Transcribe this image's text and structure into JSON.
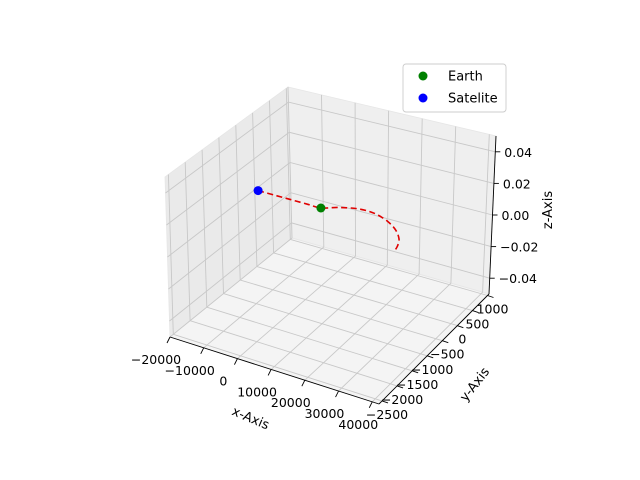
{
  "chart_data": {
    "type": "line3d",
    "xlabel": "x-Axis",
    "ylabel": "y-Axis",
    "zlabel": "z-Axis",
    "x_ticks": [
      "−20000",
      "−10000",
      "0",
      "10000",
      "20000",
      "30000",
      "40000"
    ],
    "y_ticks": [
      "−2500",
      "−2000",
      "−1500",
      "−1000",
      "−500",
      "0",
      "500",
      "1000"
    ],
    "z_ticks": [
      "−0.04",
      "−0.02",
      "0.00",
      "0.02",
      "0.04"
    ],
    "xlim": [
      -20000,
      42000
    ],
    "ylim": [
      -2600,
      1050
    ],
    "zlim": [
      -0.05,
      0.05
    ],
    "grid": true,
    "legend_position": "top-right",
    "series": [
      {
        "name": "Earth",
        "marker": "circle",
        "color": "#008000",
        "points": [
          [
            0,
            0,
            0
          ]
        ]
      },
      {
        "name": "Satelite",
        "marker": "circle",
        "color": "#0000ff",
        "points": [
          [
            -19000,
            0,
            0
          ]
        ]
      },
      {
        "name": "",
        "style": "dashed",
        "color": "#ff0000",
        "points": [
          [
            -19000,
            0,
            0
          ],
          [
            -14000,
            0,
            0
          ],
          [
            -9000,
            0,
            0
          ],
          [
            -4000,
            0,
            0
          ],
          [
            0,
            0,
            0
          ],
          [
            4000,
            150,
            0
          ],
          [
            9000,
            260,
            0
          ],
          [
            14000,
            250,
            0
          ],
          [
            19000,
            130,
            0
          ],
          [
            23000,
            -40,
            0
          ],
          [
            26000,
            -250,
            0
          ],
          [
            27500,
            -460,
            0
          ],
          [
            28000,
            -620,
            0
          ]
        ]
      }
    ]
  }
}
